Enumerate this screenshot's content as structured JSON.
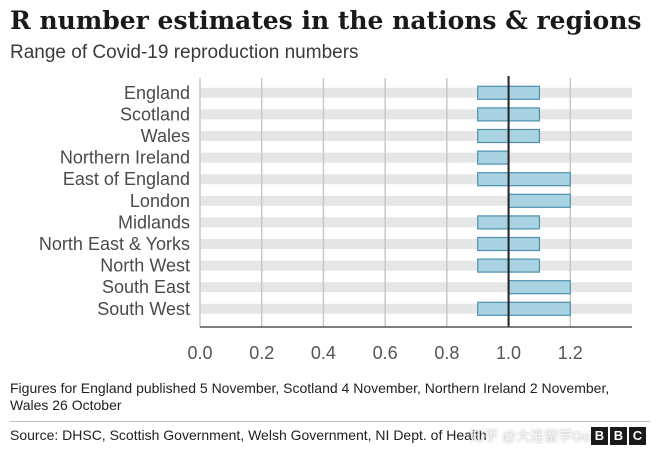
{
  "header": {
    "title": "R number estimates in the nations & regions",
    "subtitle": "Range of Covid-19 reproduction numbers"
  },
  "chart_data": {
    "type": "bar",
    "orientation": "horizontal-range",
    "title": "R number estimates in the nations & regions",
    "subtitle": "Range of Covid-19 reproduction numbers",
    "categories": [
      "England",
      "Scotland",
      "Wales",
      "Northern Ireland",
      "East of England",
      "London",
      "Midlands",
      "North East & Yorks",
      "North West",
      "South East",
      "South West"
    ],
    "ranges": [
      [
        0.9,
        1.1
      ],
      [
        0.9,
        1.1
      ],
      [
        0.9,
        1.1
      ],
      [
        0.9,
        1.0
      ],
      [
        0.9,
        1.2
      ],
      [
        1.0,
        1.2
      ],
      [
        0.9,
        1.1
      ],
      [
        0.9,
        1.1
      ],
      [
        0.9,
        1.1
      ],
      [
        1.0,
        1.2
      ],
      [
        0.9,
        1.2
      ]
    ],
    "xlim": [
      0.0,
      1.4
    ],
    "xticks": [
      "0.0",
      "0.2",
      "0.4",
      "0.6",
      "0.8",
      "1.0",
      "1.2"
    ],
    "reference_line": 1.0,
    "grid": true,
    "colors": {
      "bar_fill": "#a9d3e2",
      "bar_stroke": "#4d8fad",
      "row_band": "#e6e6e6",
      "grid": "#c8c8c8",
      "reference": "#222222"
    }
  },
  "footer": {
    "note": "Figures for England published 5 November, Scotland 4 November, Northern Ireland 2 November, Wales 26 October",
    "source": "Source: DHSC, Scottish Government, Welsh Government, NI Dept. of Health",
    "logo_letters": [
      "B",
      "B",
      "C"
    ],
    "watermark": "知乎 @大连留学Goar"
  }
}
